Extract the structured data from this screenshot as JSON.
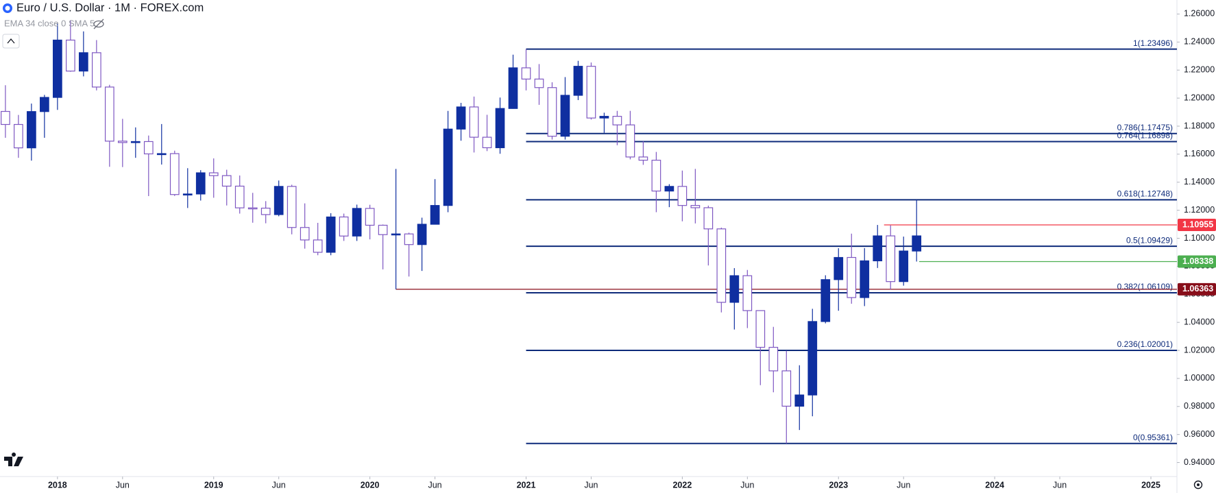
{
  "chart_data": {
    "type": "candlestick",
    "title": "Euro / U.S. Dollar · 1M · FOREX.com",
    "indicators": "EMA 34 close 0 SMA 5",
    "x": [
      "2017-09",
      "2017-10",
      "2017-11",
      "2017-12",
      "2018-01",
      "2018-02",
      "2018-03",
      "2018-04",
      "2018-05",
      "2018-06",
      "2018-07",
      "2018-08",
      "2018-09",
      "2018-10",
      "2018-11",
      "2018-12",
      "2019-01",
      "2019-02",
      "2019-03",
      "2019-04",
      "2019-05",
      "2019-06",
      "2019-07",
      "2019-08",
      "2019-09",
      "2019-10",
      "2019-11",
      "2019-12",
      "2020-01",
      "2020-02",
      "2020-03",
      "2020-04",
      "2020-05",
      "2020-06",
      "2020-07",
      "2020-08",
      "2020-09",
      "2020-10",
      "2020-11",
      "2020-12",
      "2021-01",
      "2021-02",
      "2021-03",
      "2021-04",
      "2021-05",
      "2021-06",
      "2021-07",
      "2021-08",
      "2021-09",
      "2021-10",
      "2021-11",
      "2021-12",
      "2022-01",
      "2022-02",
      "2022-03",
      "2022-04",
      "2022-05",
      "2022-06",
      "2022-07",
      "2022-08",
      "2022-09",
      "2022-10",
      "2022-11",
      "2022-12",
      "2023-01",
      "2023-02",
      "2023-03",
      "2023-04",
      "2023-05",
      "2023-06",
      "2023-07"
    ],
    "open": [
      1.1905,
      1.1812,
      1.1645,
      1.1904,
      1.2005,
      1.2414,
      1.2193,
      1.2324,
      1.2079,
      1.1693,
      1.1683,
      1.169,
      1.1602,
      1.1604,
      1.1312,
      1.1316,
      1.1467,
      1.1447,
      1.1372,
      1.1217,
      1.1215,
      1.1169,
      1.137,
      1.1077,
      1.0988,
      1.09,
      1.1152,
      1.1016,
      1.1213,
      1.1093,
      1.1026,
      1.1031,
      1.0955,
      1.11,
      1.1234,
      1.1779,
      1.1937,
      1.1721,
      1.1646,
      1.1926,
      1.2216,
      1.2136,
      1.2075,
      1.1728,
      1.202,
      1.2227,
      1.1858,
      1.187,
      1.1809,
      1.158,
      1.1557,
      1.1337,
      1.137,
      1.1234,
      1.1218,
      1.1067,
      1.0543,
      1.0733,
      1.0484,
      1.0222,
      1.0054,
      0.9802,
      0.9882,
      1.0406,
      1.0705,
      1.0863,
      1.0577,
      1.0839,
      1.1017,
      1.0691,
      1.0909
    ],
    "high": [
      1.2092,
      1.188,
      1.1961,
      1.2023,
      1.2537,
      1.2556,
      1.2476,
      1.2414,
      1.2095,
      1.1852,
      1.1791,
      1.1733,
      1.1815,
      1.1625,
      1.15,
      1.1486,
      1.157,
      1.1489,
      1.1448,
      1.1324,
      1.1265,
      1.1412,
      1.1382,
      1.1249,
      1.111,
      1.1179,
      1.1176,
      1.124,
      1.1239,
      1.1098,
      1.1495,
      1.104,
      1.1147,
      1.1422,
      1.1909,
      1.1966,
      1.2011,
      1.1881,
      1.2004,
      1.231,
      1.235,
      1.2243,
      1.2113,
      1.215,
      1.2266,
      1.2254,
      1.1896,
      1.1909,
      1.1909,
      1.1692,
      1.1616,
      1.1386,
      1.1483,
      1.1495,
      1.1233,
      1.1076,
      1.0787,
      1.0774,
      1.0486,
      1.0368,
      1.0198,
      1.0094,
      1.0497,
      1.0736,
      1.0929,
      1.1033,
      1.093,
      1.1095,
      1.1092,
      1.1012,
      1.1275
    ],
    "low": [
      1.1717,
      1.1574,
      1.1554,
      1.1717,
      1.1916,
      1.2188,
      1.2155,
      1.2055,
      1.151,
      1.1508,
      1.1574,
      1.1301,
      1.1526,
      1.1302,
      1.1216,
      1.1269,
      1.1289,
      1.1234,
      1.1176,
      1.1111,
      1.1107,
      1.1157,
      1.1028,
      1.0926,
      1.0879,
      1.0879,
      1.0981,
      1.0981,
      1.0992,
      1.0778,
      1.0636,
      1.0727,
      1.0767,
      1.1099,
      1.1186,
      1.1696,
      1.1612,
      1.1622,
      1.1603,
      1.1924,
      1.2055,
      1.1952,
      1.1704,
      1.1704,
      1.1986,
      1.1847,
      1.1752,
      1.1664,
      1.1563,
      1.1524,
      1.1186,
      1.1222,
      1.1121,
      1.1106,
      1.0806,
      1.0471,
      1.0349,
      1.0359,
      0.9952,
      0.9901,
      0.9536,
      0.9632,
      0.973,
      1.0393,
      1.0483,
      1.0533,
      1.0516,
      1.0788,
      1.0635,
      1.0662,
      1.0834
    ],
    "close": [
      1.1812,
      1.1645,
      1.1904,
      1.2005,
      1.2414,
      1.2193,
      1.2324,
      1.2079,
      1.1693,
      1.1683,
      1.169,
      1.1602,
      1.1604,
      1.1312,
      1.1316,
      1.1467,
      1.1447,
      1.1372,
      1.1217,
      1.1215,
      1.1169,
      1.137,
      1.1077,
      1.0988,
      1.09,
      1.1152,
      1.1016,
      1.1213,
      1.1093,
      1.1026,
      1.1031,
      1.0955,
      1.11,
      1.1234,
      1.1779,
      1.1937,
      1.1721,
      1.1646,
      1.1926,
      1.2216,
      1.2136,
      1.2075,
      1.1728,
      1.202,
      1.2227,
      1.1858,
      1.187,
      1.1809,
      1.158,
      1.1557,
      1.1337,
      1.137,
      1.1234,
      1.1218,
      1.1067,
      1.0543,
      1.0733,
      1.0484,
      1.0222,
      1.0054,
      0.9802,
      0.9882,
      1.0406,
      1.0705,
      1.0863,
      1.0577,
      1.0839,
      1.1017,
      1.0691,
      1.0909,
      1.1017
    ],
    "up_color": "#0f2fa0",
    "down_color": "#7e57c2",
    "fib_color": "#0d2a7a",
    "fib_levels": [
      {
        "value": 1.23496,
        "label": "1(1.23496)"
      },
      {
        "value": 1.17475,
        "label": "0.786(1.17475)"
      },
      {
        "value": 1.16898,
        "label": "0.764(1.16898)"
      },
      {
        "value": 1.12748,
        "label": "0.618(1.12748)"
      },
      {
        "value": 1.09429,
        "label": "0.5(1.09429)"
      },
      {
        "value": 1.06109,
        "label": "0.382(1.06109)"
      },
      {
        "value": 1.02001,
        "label": "0.236(1.02001)"
      },
      {
        "value": 0.95361,
        "label": "0(0.95361)"
      }
    ],
    "price_lines": [
      {
        "value": 1.10955,
        "color": "#f23645"
      },
      {
        "value": 1.08338,
        "color": "#4caf50"
      },
      {
        "value": 1.06363,
        "color": "#880e1a"
      }
    ],
    "ylim": [
      0.93,
      1.27
    ],
    "yticks": [
      {
        "value": 1.26,
        "label": "1.26000"
      },
      {
        "value": 1.24,
        "label": "1.24000"
      },
      {
        "value": 1.22,
        "label": "1.22000"
      },
      {
        "value": 1.2,
        "label": "1.20000"
      },
      {
        "value": 1.18,
        "label": "1.18000"
      },
      {
        "value": 1.16,
        "label": "1.16000"
      },
      {
        "value": 1.14,
        "label": "1.14000"
      },
      {
        "value": 1.12,
        "label": "1.12000"
      },
      {
        "value": 1.1,
        "label": "1.10000"
      },
      {
        "value": 1.08,
        "label": "1.08000"
      },
      {
        "value": 1.06,
        "label": "1.06000"
      },
      {
        "value": 1.04,
        "label": "1.04000"
      },
      {
        "value": 1.02,
        "label": "1.02000"
      },
      {
        "value": 1.0,
        "label": "1.00000"
      },
      {
        "value": 0.98,
        "label": "0.98000"
      },
      {
        "value": 0.96,
        "label": "0.96000"
      },
      {
        "value": 0.94,
        "label": "0.94000"
      }
    ],
    "xticks": [
      {
        "value": "2018-01",
        "label": "2018"
      },
      {
        "value": "2018-06",
        "label": "Jun"
      },
      {
        "value": "2019-01",
        "label": "2019"
      },
      {
        "value": "2019-06",
        "label": "Jun"
      },
      {
        "value": "2020-01",
        "label": "2020"
      },
      {
        "value": "2020-06",
        "label": "Jun"
      },
      {
        "value": "2021-01",
        "label": "2021"
      },
      {
        "value": "2021-06",
        "label": "Jun"
      },
      {
        "value": "2022-01",
        "label": "2022"
      },
      {
        "value": "2022-06",
        "label": "Jun"
      },
      {
        "value": "2023-01",
        "label": "2023"
      },
      {
        "value": "2023-06",
        "label": "Jun"
      },
      {
        "value": "2024-01",
        "label": "2024"
      },
      {
        "value": "2024-06",
        "label": "Jun"
      },
      {
        "value": "2025-01",
        "label": "2025"
      }
    ]
  }
}
